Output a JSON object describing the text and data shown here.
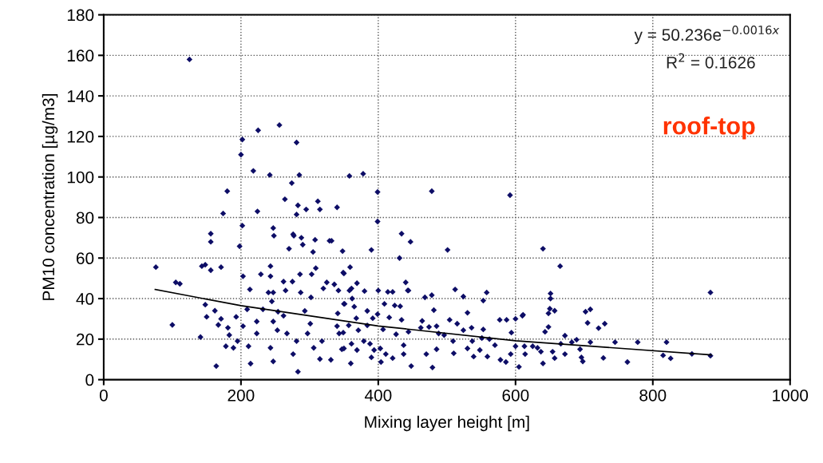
{
  "chart_data": {
    "type": "scatter",
    "xlabel": "Mixing layer height [m]",
    "ylabel": "PM10 concentration [µg/m3]",
    "xlim": [
      0,
      1000
    ],
    "xticks": [
      0,
      200,
      400,
      600,
      800,
      1000
    ],
    "ylim": [
      0,
      180
    ],
    "yticks": [
      0,
      20,
      40,
      60,
      80,
      100,
      120,
      140,
      160,
      180
    ],
    "grid": true,
    "annotations": [
      "y = 50.236e$^{−0.0016x}$",
      "R$^{2}$ = 0.1626",
      "roof-top"
    ],
    "series": [
      {
        "marker": "diamond",
        "color": "#0d0d66",
        "x": [
          125,
          202,
          200,
          225,
          256,
          281,
          218,
          242,
          285,
          274,
          180,
          264,
          283,
          281,
          295,
          315,
          312,
          340,
          156,
          224,
          202,
          156,
          248,
          277,
          288,
          308,
          329,
          305,
          143,
          358,
          378,
          399,
          478,
          592,
          399,
          434,
          447,
          501,
          640,
          665,
          431,
          390,
          358,
          400,
          443,
          558,
          512,
          524,
          553,
          530,
          577,
          587,
          600,
          611,
          651,
          651,
          650,
          657,
          648,
          672,
          605,
          640,
          479,
          448,
          360,
          884,
          884,
          857,
          826,
          815,
          820,
          778,
          763,
          745,
          728,
          730,
          721,
          702,
          709,
          705,
          709,
          698,
          76,
          105,
          111,
          100,
          141,
          148,
          150,
          164,
          162,
          171,
          167,
          181,
          183,
          178,
          189,
          195,
          193,
          203,
          203,
          213,
          209,
          211,
          214,
          223,
          223,
          229,
          243,
          243,
          240,
          247,
          245,
          232,
          254,
          247,
          243,
          247,
          253,
          262,
          265,
          262,
          267,
          276,
          281,
          283,
          275,
          287,
          286,
          303,
          302,
          293,
          297,
          301,
          306,
          309,
          315,
          318,
          325,
          320,
          336,
          342,
          331,
          340,
          349,
          350,
          343,
          347,
          341,
          359,
          350,
          361,
          369,
          380,
          362,
          351,
          365,
          384,
          368,
          392,
          399,
          357,
          371,
          384,
          407,
          349,
          361,
          379,
          388,
          394,
          403,
          350,
          369,
          390,
          404,
          411,
          421,
          437,
          414,
          421,
          409,
          424,
          432,
          416,
          434,
          426,
          437,
          444,
          440,
          444,
          464,
          462,
          474,
          470,
          468,
          478,
          481,
          485,
          488,
          485,
          496,
          509,
          515,
          504,
          524,
          510,
          530,
          536,
          537,
          539,
          548,
          551,
          553,
          559,
          562,
          570,
          578,
          586,
          593,
          594,
          600,
          613,
          614,
          625,
          632,
          637,
          643,
          654,
          657,
          666,
          672,
          682,
          689,
          694,
          696,
          648,
          610,
          148,
          156,
          171,
          174,
          198,
          247,
          276,
          290,
          332,
          348,
          270
        ],
        "values": [
          158,
          118.5,
          111,
          123,
          125.6,
          117,
          103,
          101,
          101,
          97,
          93,
          89,
          86,
          81.5,
          84,
          84,
          88,
          85,
          72,
          83,
          76,
          68,
          71,
          71,
          70,
          69,
          68.5,
          63,
          56,
          100.5,
          101.6,
          92.6,
          93,
          91,
          78,
          72,
          68,
          64,
          64.6,
          56,
          60,
          64,
          44,
          44,
          44,
          43,
          44.5,
          41,
          39,
          33,
          29.5,
          29.5,
          30,
          32,
          42.5,
          40,
          35,
          34,
          26,
          21.7,
          6.3,
          8,
          6,
          6.7,
          8,
          43,
          11.8,
          12.7,
          10.5,
          12,
          18.5,
          18.5,
          8.7,
          18.5,
          10.7,
          27.6,
          25.4,
          33.5,
          34.7,
          28,
          18.5,
          9,
          55.5,
          48,
          47.3,
          27,
          21,
          37,
          31,
          6.7,
          34,
          30,
          27,
          25.6,
          22,
          16.5,
          15.7,
          19,
          31,
          26.4,
          51,
          44.5,
          34.7,
          16.5,
          7.9,
          28.7,
          22.8,
          52,
          51,
          56,
          43,
          43,
          38.6,
          34.7,
          33.5,
          28.7,
          15.7,
          9,
          24.4,
          48.4,
          44,
          31.5,
          22.8,
          12.6,
          19,
          3.9,
          48.4,
          43,
          52,
          52,
          40.6,
          33.9,
          22.8,
          27.6,
          15.7,
          55,
          10.2,
          19,
          48,
          45,
          47,
          44,
          9.8,
          26.4,
          52.8,
          37.4,
          22.8,
          15,
          32.7,
          55.5,
          52.4,
          45,
          47.6,
          43.7,
          40,
          37.4,
          36,
          33.9,
          30.3,
          30.3,
          32.3,
          26.8,
          24.4,
          26.8,
          24.8,
          23.2,
          17.7,
          19,
          17.7,
          14.6,
          15.4,
          15.4,
          14.6,
          11,
          8.7,
          12.6,
          10.6,
          12.6,
          43.3,
          43.3,
          37.4,
          36.6,
          36.2,
          30.7,
          29.5,
          22.4,
          17,
          23.6,
          48,
          44,
          29,
          25.6,
          26,
          12.6,
          40.6,
          41.7,
          34.3,
          26.4,
          22.8,
          15,
          22,
          19,
          27.6,
          29.5,
          24.4,
          13,
          15.4,
          25.6,
          19,
          11.4,
          14.6,
          20.5,
          24.8,
          11.4,
          20,
          17,
          9.8,
          8.7,
          12.6,
          23.2,
          16.5,
          16.5,
          12.6,
          16.5,
          15.7,
          13.8,
          23.6,
          13.8,
          10.6,
          17.7,
          12.6,
          18.5,
          19.7,
          15,
          11,
          32.7,
          31.5,
          56.7,
          54,
          55.5,
          82,
          65.8,
          74.8,
          71.7,
          66.6,
          68.5,
          63.4,
          64.6
        ]
      },
      {
        "type": "line",
        "color": "#000000",
        "x": [
          75,
          200,
          400,
          600,
          885
        ],
        "values": [
          44.5,
          36.5,
          26.5,
          19.2,
          12.2
        ]
      }
    ]
  }
}
